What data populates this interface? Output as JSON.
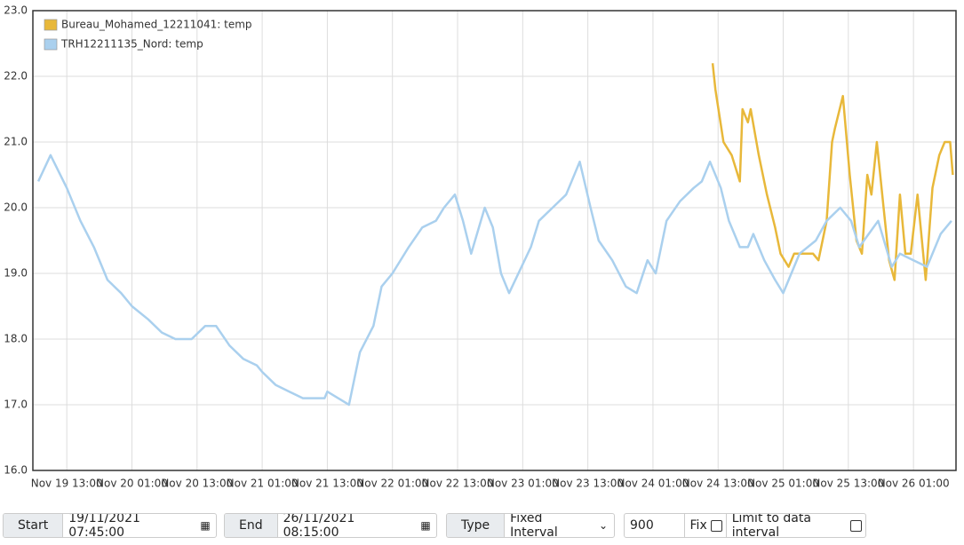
{
  "chart_data": {
    "type": "line",
    "xlim": [
      "Nov 19 06:45",
      "Nov 26 08:50"
    ],
    "xticks": [
      "Nov 19 13:00",
      "Nov 20 01:00",
      "Nov 20 13:00",
      "Nov 21 01:00",
      "Nov 21 13:00",
      "Nov 22 01:00",
      "Nov 22 13:00",
      "Nov 23 01:00",
      "Nov 23 13:00",
      "Nov 24 01:00",
      "Nov 24 13:00",
      "Nov 25 01:00",
      "Nov 25 13:00",
      "Nov 26 01:00"
    ],
    "ylim": [
      16,
      23
    ],
    "yticks": [
      {
        "value": 16,
        "label": "16.0"
      },
      {
        "value": 17,
        "label": "17.0"
      },
      {
        "value": 18,
        "label": "18.0"
      },
      {
        "value": 19,
        "label": "19.0"
      },
      {
        "value": 20,
        "label": "20.0"
      },
      {
        "value": 21,
        "label": "21.0"
      },
      {
        "value": 22,
        "label": "22.0"
      },
      {
        "value": 23,
        "label": "23.0"
      }
    ],
    "grid": true,
    "legend": "top-left",
    "series": [
      {
        "name": "Bureau_Mohamed_12211041: temp",
        "color": "#e8b83a",
        "x": [
          "Nov 24 12:00",
          "Nov 24 12:30",
          "Nov 24 14:00",
          "Nov 24 15:30",
          "Nov 24 17:00",
          "Nov 24 17:30",
          "Nov 24 18:30",
          "Nov 24 19:00",
          "Nov 24 20:30",
          "Nov 24 22:00",
          "Nov 24 23:30",
          "Nov 25 00:30",
          "Nov 25 02:00",
          "Nov 25 03:00",
          "Nov 25 06:30",
          "Nov 25 07:30",
          "Nov 25 09:00",
          "Nov 25 10:00",
          "Nov 25 10:30",
          "Nov 25 12:00",
          "Nov 25 13:15",
          "Nov 25 14:30",
          "Nov 25 15:30",
          "Nov 25 16:30",
          "Nov 25 17:15",
          "Nov 25 18:15",
          "Nov 25 19:30",
          "Nov 25 20:30",
          "Nov 25 21:30",
          "Nov 25 22:30",
          "Nov 25 23:30",
          "Nov 26 00:30",
          "Nov 26 01:45",
          "Nov 26 03:15",
          "Nov 26 04:30",
          "Nov 26 05:45",
          "Nov 26 06:45",
          "Nov 26 07:45",
          "Nov 26 08:15"
        ],
        "values": [
          22.2,
          21.8,
          21.0,
          20.8,
          20.4,
          21.5,
          21.3,
          21.5,
          20.8,
          20.2,
          19.7,
          19.3,
          19.1,
          19.3,
          19.3,
          19.2,
          19.8,
          21.0,
          21.2,
          21.7,
          20.5,
          19.5,
          19.3,
          20.5,
          20.2,
          21.0,
          20.0,
          19.2,
          18.9,
          20.2,
          19.3,
          19.3,
          20.2,
          18.9,
          20.3,
          20.8,
          21.0,
          21.0,
          20.5
        ]
      },
      {
        "name": "TRH12211135_Nord: temp",
        "color": "#aad0ee",
        "x": [
          "Nov 19 07:45",
          "Nov 19 10:00",
          "Nov 19 13:00",
          "Nov 19 15:30",
          "Nov 19 18:00",
          "Nov 19 20:30",
          "Nov 19 23:00",
          "Nov 20 01:00",
          "Nov 20 04:00",
          "Nov 20 06:30",
          "Nov 20 09:00",
          "Nov 20 12:00",
          "Nov 20 14:30",
          "Nov 20 16:30",
          "Nov 20 19:00",
          "Nov 20 21:30",
          "Nov 21 00:00",
          "Nov 21 01:00",
          "Nov 21 03:30",
          "Nov 21 06:00",
          "Nov 21 08:30",
          "Nov 21 12:30",
          "Nov 21 13:00",
          "Nov 21 17:00",
          "Nov 21 19:00",
          "Nov 21 21:30",
          "Nov 21 23:00",
          "Nov 22 01:00",
          "Nov 22 04:00",
          "Nov 22 06:30",
          "Nov 22 09:00",
          "Nov 22 10:30",
          "Nov 22 12:30",
          "Nov 22 14:00",
          "Nov 22 15:30",
          "Nov 22 18:00",
          "Nov 22 19:30",
          "Nov 22 21:00",
          "Nov 22 22:30",
          "Nov 23 02:30",
          "Nov 23 04:00",
          "Nov 23 06:30",
          "Nov 23 09:00",
          "Nov 23 11:30",
          "Nov 23 13:30",
          "Nov 23 15:00",
          "Nov 23 17:30",
          "Nov 23 20:00",
          "Nov 23 22:00",
          "Nov 24 00:00",
          "Nov 24 01:30",
          "Nov 24 03:30",
          "Nov 24 06:00",
          "Nov 24 08:30",
          "Nov 24 10:00",
          "Nov 24 11:30",
          "Nov 24 13:30",
          "Nov 24 15:00",
          "Nov 24 17:00",
          "Nov 24 18:30",
          "Nov 24 19:30",
          "Nov 24 21:30",
          "Nov 24 23:30",
          "Nov 25 01:00",
          "Nov 25 02:30",
          "Nov 25 04:00",
          "Nov 25 07:00",
          "Nov 25 09:00",
          "Nov 25 11:30",
          "Nov 25 13:30",
          "Nov 25 15:00",
          "Nov 25 18:30",
          "Nov 25 21:00",
          "Nov 25 22:30",
          "Nov 26 01:00",
          "Nov 26 03:30",
          "Nov 26 06:00",
          "Nov 26 08:00"
        ],
        "values": [
          20.4,
          20.8,
          20.3,
          19.8,
          19.4,
          18.9,
          18.7,
          18.5,
          18.3,
          18.1,
          18.0,
          18.0,
          18.2,
          18.2,
          17.9,
          17.7,
          17.6,
          17.5,
          17.3,
          17.2,
          17.1,
          17.1,
          17.2,
          17.0,
          17.8,
          18.2,
          18.8,
          19.0,
          19.4,
          19.7,
          19.8,
          20.0,
          20.2,
          19.8,
          19.3,
          20.0,
          19.7,
          19.0,
          18.7,
          19.4,
          19.8,
          20.0,
          20.2,
          20.7,
          20.0,
          19.5,
          19.2,
          18.8,
          18.7,
          19.2,
          19.0,
          19.8,
          20.1,
          20.3,
          20.4,
          20.7,
          20.3,
          19.8,
          19.4,
          19.4,
          19.6,
          19.2,
          18.9,
          18.7,
          19.0,
          19.3,
          19.5,
          19.8,
          20.0,
          19.8,
          19.4,
          19.8,
          19.1,
          19.3,
          19.2,
          19.1,
          19.6,
          19.8
        ]
      }
    ]
  },
  "controls": {
    "start_label": "Start",
    "start_value": "19/11/2021 07:45:00",
    "end_label": "End",
    "end_value": "26/11/2021 08:15:00",
    "type_label": "Type",
    "type_value": "Fixed Interval",
    "interval_value": "900",
    "fix_label": "Fix",
    "limit_label": "Limit to data interval"
  }
}
